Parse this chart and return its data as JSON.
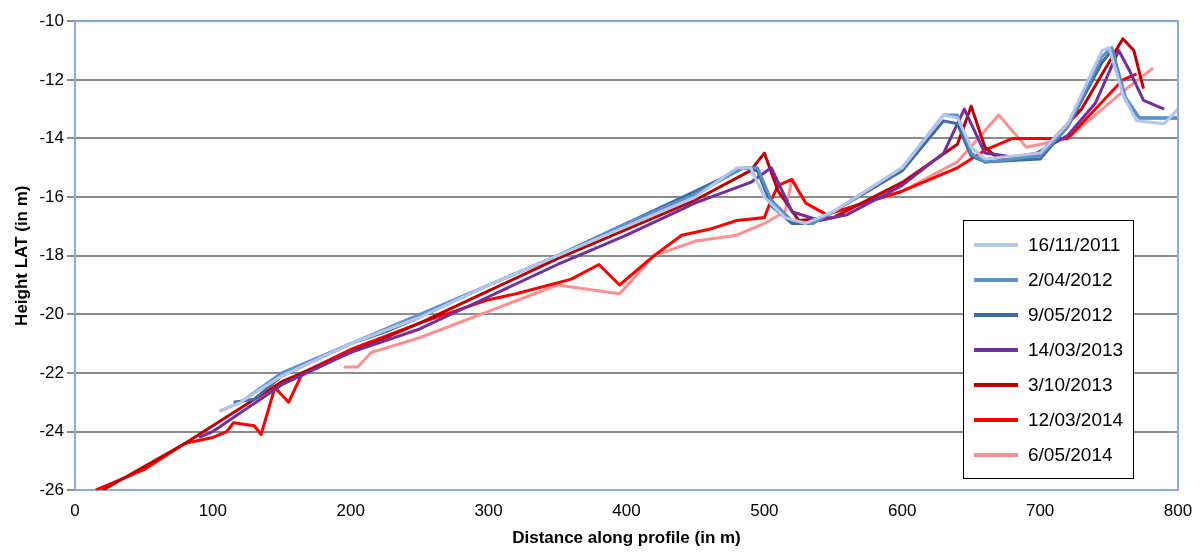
{
  "chart_data": {
    "type": "line",
    "xlabel": "Distance along profile (in m)",
    "ylabel": "Height LAT (in m)",
    "xlim": [
      0,
      800
    ],
    "xticks": [
      0,
      100,
      200,
      300,
      400,
      500,
      600,
      700,
      800
    ],
    "ylim": [
      -26,
      -10
    ],
    "yticks": [
      -26,
      -24,
      -22,
      -20,
      -18,
      -16,
      -14,
      -12,
      -10
    ],
    "grid": "y",
    "legend": "bottom right",
    "marker": "none",
    "line_style": "solid",
    "series": [
      {
        "name": "16/11/2011",
        "color": "#b4c7e7",
        "x": [
          105,
          120,
          150,
          200,
          250,
          300,
          350,
          400,
          450,
          480,
          490,
          500,
          515,
          530,
          550,
          600,
          630,
          640,
          650,
          660,
          700,
          720,
          745,
          750,
          760,
          770,
          790,
          800
        ],
        "values": [
          -23.3,
          -23.0,
          -22.1,
          -21.0,
          -20.1,
          -19.0,
          -18.0,
          -17.0,
          -16.0,
          -15.0,
          -15.0,
          -16.0,
          -16.7,
          -16.9,
          -16.5,
          -15.0,
          -13.2,
          -13.3,
          -14.3,
          -14.7,
          -14.5,
          -13.5,
          -11.0,
          -10.9,
          -12.5,
          -13.4,
          -13.5,
          -13.0
        ]
      },
      {
        "name": "2/04/2012",
        "color": "#5b8fd0",
        "x": [
          105,
          120,
          150,
          200,
          250,
          300,
          350,
          400,
          450,
          485,
          495,
          505,
          520,
          535,
          550,
          600,
          630,
          640,
          650,
          660,
          700,
          720,
          745,
          752,
          762,
          772,
          790,
          800
        ],
        "values": [
          -23.3,
          -23.0,
          -22.0,
          -21.0,
          -20.0,
          -19.0,
          -18.0,
          -16.9,
          -15.9,
          -15.0,
          -15.0,
          -16.1,
          -16.8,
          -16.9,
          -16.5,
          -15.0,
          -13.2,
          -13.2,
          -14.5,
          -14.8,
          -14.6,
          -13.6,
          -11.2,
          -10.9,
          -12.6,
          -13.3,
          -13.3,
          -13.3
        ]
      },
      {
        "name": "9/05/2012",
        "color": "#3d6aa0",
        "x": [
          115,
          130,
          150,
          200,
          225,
          250,
          300,
          350,
          400,
          450,
          485,
          495,
          505,
          520,
          535,
          550,
          600,
          630,
          640,
          650,
          660,
          700,
          720,
          745,
          752,
          762,
          772,
          790,
          800
        ],
        "values": [
          -23.0,
          -22.9,
          -22.1,
          -21.0,
          -20.6,
          -20.1,
          -19.0,
          -18.0,
          -16.9,
          -15.8,
          -15.0,
          -15.1,
          -16.3,
          -16.9,
          -16.9,
          -16.5,
          -15.1,
          -13.4,
          -13.5,
          -14.6,
          -14.8,
          -14.7,
          -13.6,
          -11.4,
          -11.0,
          -12.7,
          -13.3,
          -13.3,
          -13.3
        ]
      },
      {
        "name": "14/03/2013",
        "color": "#7030a0",
        "x": [
          90,
          100,
          150,
          200,
          250,
          300,
          350,
          400,
          450,
          490,
          505,
          520,
          540,
          560,
          600,
          630,
          645,
          660,
          690,
          720,
          740,
          757,
          765,
          775,
          790
        ],
        "values": [
          -24.2,
          -24.0,
          -22.4,
          -21.3,
          -20.5,
          -19.4,
          -18.3,
          -17.3,
          -16.2,
          -15.5,
          -15.0,
          -16.5,
          -16.8,
          -16.6,
          -15.6,
          -14.5,
          -13.0,
          -14.5,
          -14.7,
          -13.9,
          -12.8,
          -11.0,
          -11.7,
          -12.7,
          -13.0
        ]
      },
      {
        "name": "3/10/2013",
        "color": "#c00000",
        "x": [
          20,
          50,
          80,
          100,
          150,
          200,
          250,
          300,
          350,
          400,
          450,
          490,
          500,
          510,
          525,
          550,
          600,
          640,
          650,
          660,
          670,
          700,
          730,
          760,
          768,
          775
        ],
        "values": [
          -26.0,
          -25.2,
          -24.4,
          -23.8,
          -22.3,
          -21.3,
          -20.3,
          -19.2,
          -18.1,
          -17.1,
          -16.1,
          -15.1,
          -14.5,
          -15.8,
          -16.8,
          -16.7,
          -15.5,
          -14.2,
          -12.9,
          -14.3,
          -14.7,
          -14.5,
          -13.0,
          -10.6,
          -11.0,
          -12.3
        ]
      },
      {
        "name": "12/03/2014",
        "color": "#ff0000",
        "x": [
          15,
          50,
          80,
          100,
          110,
          115,
          130,
          135,
          145,
          155,
          165,
          200,
          250,
          300,
          320,
          360,
          380,
          395,
          420,
          440,
          460,
          480,
          500,
          505,
          510,
          520,
          530,
          545,
          600,
          640,
          660,
          680,
          720,
          760,
          770
        ],
        "values": [
          -26.0,
          -25.3,
          -24.4,
          -24.2,
          -24.0,
          -23.7,
          -23.8,
          -24.1,
          -22.5,
          -23.0,
          -22.0,
          -21.2,
          -20.3,
          -19.5,
          -19.3,
          -18.8,
          -18.3,
          -19.0,
          -18.0,
          -17.3,
          -17.1,
          -16.8,
          -16.7,
          -16.1,
          -15.6,
          -15.4,
          -16.2,
          -16.6,
          -15.8,
          -15.0,
          -14.4,
          -14.0,
          -14.0,
          -12.0,
          -11.8
        ]
      },
      {
        "name": "6/05/2014",
        "color": "#ff8f8f",
        "x": [
          195,
          205,
          215,
          250,
          300,
          350,
          395,
          420,
          450,
          480,
          500,
          515,
          520,
          530,
          545,
          600,
          640,
          670,
          690,
          720,
          760,
          782
        ],
        "values": [
          -21.8,
          -21.8,
          -21.3,
          -20.8,
          -19.9,
          -19.0,
          -19.3,
          -18.0,
          -17.5,
          -17.3,
          -16.9,
          -16.5,
          -15.4,
          -16.2,
          -16.6,
          -15.8,
          -14.8,
          -13.2,
          -14.3,
          -14.0,
          -12.4,
          -11.6
        ]
      }
    ]
  }
}
